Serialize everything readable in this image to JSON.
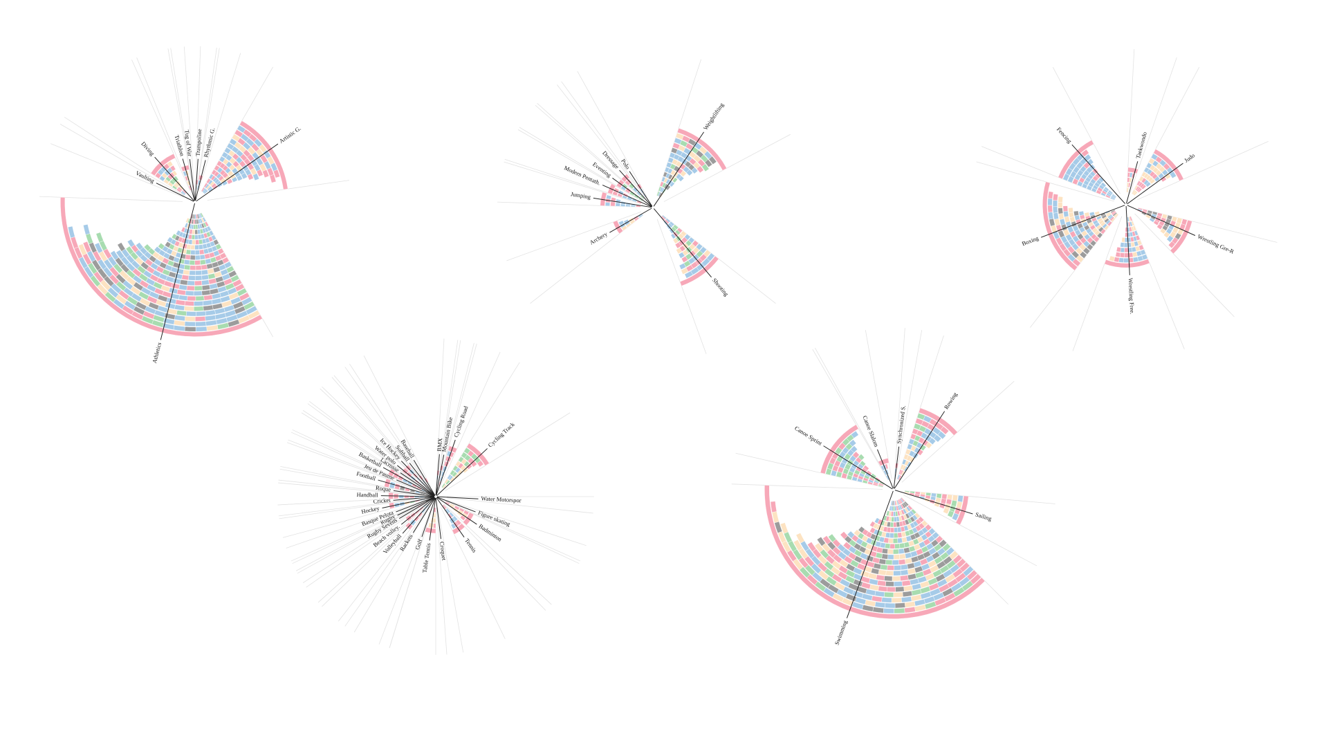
{
  "palette": {
    "pink": "#f7a8b8",
    "blue": "#a6cbe8",
    "peach": "#fde3c2",
    "green": "#a8dcb0",
    "gray": "#9c9c9c",
    "axis": "#222222",
    "guide": "#e2e2e2"
  },
  "chart_data": {
    "type": "radial-stacked-bar",
    "groups": [
      {
        "id": "g1",
        "sports": [
          {
            "name": "Athletics",
            "rings": 24,
            "mix": [
              "pink",
              "blue",
              "blue",
              "blue",
              "pink",
              "blue",
              "gray",
              "peach",
              "green"
            ]
          },
          {
            "name": "Vaulting",
            "rings": 0,
            "mix": []
          },
          {
            "name": "Diving",
            "rings": 8,
            "mix": [
              "pink",
              "blue",
              "peach",
              "green"
            ]
          },
          {
            "name": "Triathlon",
            "rings": 5,
            "mix": [
              "pink",
              "blue",
              "peach"
            ]
          },
          {
            "name": "Tug of War",
            "rings": 1,
            "mix": [
              "blue"
            ]
          },
          {
            "name": "Trampoline",
            "rings": 2,
            "mix": [
              "blue",
              "pink"
            ]
          },
          {
            "name": "Rhythmic G.",
            "rings": 3,
            "mix": [
              "blue",
              "pink"
            ]
          },
          {
            "name": "Artistic G.",
            "rings": 16,
            "mix": [
              "pink",
              "blue",
              "peach",
              "blue",
              "pink"
            ]
          }
        ]
      },
      {
        "id": "g2",
        "sports": [
          {
            "name": "Weightlifting",
            "rings": 14,
            "mix": [
              "pink",
              "peach",
              "blue",
              "blue",
              "green",
              "gray"
            ]
          },
          {
            "name": "Shooting",
            "rings": 14,
            "mix": [
              "pink",
              "blue",
              "peach",
              "blue",
              "green"
            ]
          },
          {
            "name": "Archery",
            "rings": 6,
            "mix": [
              "pink",
              "peach",
              "blue"
            ]
          },
          {
            "name": "Jumping",
            "rings": 8,
            "mix": [
              "pink",
              "blue",
              "blue"
            ]
          },
          {
            "name": "Modern Pentath.",
            "rings": 7,
            "mix": [
              "pink",
              "blue"
            ]
          },
          {
            "name": "Eventing",
            "rings": 6,
            "mix": [
              "blue",
              "green",
              "pink"
            ]
          },
          {
            "name": "Dressage",
            "rings": 6,
            "mix": [
              "blue",
              "green",
              "pink"
            ]
          },
          {
            "name": "Polo",
            "rings": 3,
            "mix": [
              "blue"
            ]
          }
        ]
      },
      {
        "id": "g3",
        "sports": [
          {
            "name": "Taekwondo",
            "rings": 5,
            "mix": [
              "pink",
              "peach",
              "blue"
            ]
          },
          {
            "name": "Judo",
            "rings": 10,
            "mix": [
              "pink",
              "blue",
              "peach"
            ]
          },
          {
            "name": "Wrestling Gre-R",
            "rings": 11,
            "mix": [
              "pink",
              "blue",
              "peach",
              "gray"
            ]
          },
          {
            "name": "Wrestling Free.",
            "rings": 10,
            "mix": [
              "pink",
              "peach",
              "blue",
              "blue"
            ]
          },
          {
            "name": "Boxing",
            "rings": 14,
            "mix": [
              "pink",
              "blue",
              "blue",
              "peach",
              "gray"
            ]
          },
          {
            "name": "Fencing",
            "rings": 12,
            "mix": [
              "pink",
              "blue",
              "blue"
            ]
          }
        ]
      },
      {
        "id": "g4",
        "sports": [
          {
            "name": "BMX",
            "rings": 3,
            "mix": [
              "blue",
              "pink"
            ]
          },
          {
            "name": "Mountain Bike",
            "rings": 4,
            "mix": [
              "blue",
              "pink"
            ]
          },
          {
            "name": "Cycling Road",
            "rings": 8,
            "mix": [
              "pink",
              "blue"
            ]
          },
          {
            "name": "Cycling Track",
            "rings": 10,
            "mix": [
              "pink",
              "blue",
              "green",
              "peach"
            ]
          },
          {
            "name": "Water Motorspor",
            "rings": 0,
            "mix": []
          },
          {
            "name": "Figure skating",
            "rings": 0,
            "mix": []
          },
          {
            "name": "Badminton",
            "rings": 6,
            "mix": [
              "pink",
              "peach"
            ]
          },
          {
            "name": "Tennis",
            "rings": 6,
            "mix": [
              "pink",
              "blue"
            ]
          },
          {
            "name": "Croquet",
            "rings": 0,
            "mix": []
          },
          {
            "name": "Table Tennis",
            "rings": 5,
            "mix": [
              "pink",
              "peach"
            ]
          },
          {
            "name": "Golf",
            "rings": 1,
            "mix": [
              "pink"
            ]
          },
          {
            "name": "Rackets",
            "rings": 0,
            "mix": []
          },
          {
            "name": "Volleyball",
            "rings": 6,
            "mix": [
              "pink",
              "blue"
            ]
          },
          {
            "name": "Beach volley.",
            "rings": 5,
            "mix": [
              "pink",
              "blue"
            ]
          },
          {
            "name": "Rugby Sevens",
            "rings": 2,
            "mix": [
              "pink",
              "blue"
            ]
          },
          {
            "name": "Rugby",
            "rings": 1,
            "mix": [
              "blue"
            ]
          },
          {
            "name": "Basque Pelota",
            "rings": 0,
            "mix": []
          },
          {
            "name": "Hockey",
            "rings": 7,
            "mix": [
              "pink",
              "blue",
              "peach",
              "green"
            ]
          },
          {
            "name": "Cricket",
            "rings": 0,
            "mix": []
          },
          {
            "name": "Handball",
            "rings": 7,
            "mix": [
              "pink",
              "blue"
            ]
          },
          {
            "name": "Roque",
            "rings": 0,
            "mix": []
          },
          {
            "name": "Football",
            "rings": 8,
            "mix": [
              "pink",
              "blue",
              "gray",
              "blue"
            ]
          },
          {
            "name": "Jeu de Paume",
            "rings": 0,
            "mix": []
          },
          {
            "name": "Basketball",
            "rings": 8,
            "mix": [
              "pink",
              "blue"
            ]
          },
          {
            "name": "Lacrosse",
            "rings": 1,
            "mix": [
              "pink"
            ]
          },
          {
            "name": "Water polo",
            "rings": 6,
            "mix": [
              "pink",
              "blue"
            ]
          },
          {
            "name": "Ice Hockey",
            "rings": 6,
            "mix": [
              "pink",
              "blue"
            ]
          },
          {
            "name": "Softball",
            "rings": 3,
            "mix": [
              "blue",
              "pink"
            ]
          },
          {
            "name": "Baseball",
            "rings": 2,
            "mix": [
              "pink",
              "peach"
            ]
          }
        ]
      },
      {
        "id": "g5",
        "sports": [
          {
            "name": "Synchronized S.",
            "rings": 3,
            "mix": [
              "pink",
              "blue"
            ]
          },
          {
            "name": "Rowing",
            "rings": 14,
            "mix": [
              "pink",
              "blue",
              "blue",
              "green",
              "peach"
            ]
          },
          {
            "name": "Sailing",
            "rings": 12,
            "mix": [
              "pink",
              "blue",
              "green",
              "peach"
            ]
          },
          {
            "name": "Swimming",
            "rings": 22,
            "mix": [
              "pink",
              "blue",
              "pink",
              "blue",
              "green",
              "peach",
              "gray"
            ]
          },
          {
            "name": "Canoe Sprint",
            "rings": 12,
            "mix": [
              "pink",
              "blue",
              "green"
            ]
          },
          {
            "name": "Canoe Slalom",
            "rings": 4,
            "mix": [
              "pink",
              "blue"
            ]
          }
        ]
      }
    ]
  }
}
